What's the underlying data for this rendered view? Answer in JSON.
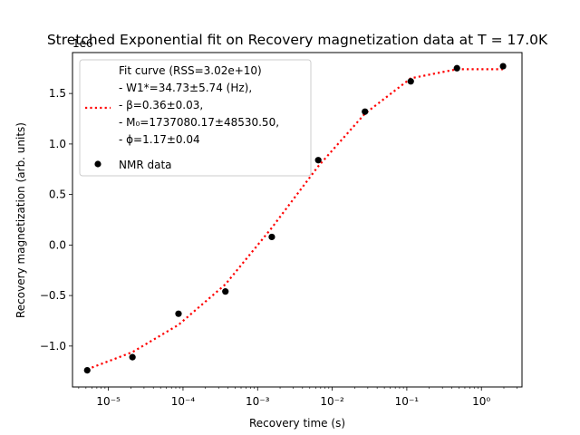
{
  "chart_data": {
    "type": "scatter",
    "title": "Stretched Exponential fit on Recovery magnetization data at T = 17.0K",
    "xlabel": "Recovery time (s)",
    "ylabel": "Recovery magnetization (arb. units)",
    "y_offset_label": "1e6",
    "x_scale": "log",
    "xlim": [
      3.3e-06,
      3.5
    ],
    "ylim": [
      -1.405,
      1.905
    ],
    "x_ticks": [
      {
        "value": 1e-05,
        "label": "10⁻⁵"
      },
      {
        "value": 0.0001,
        "label": "10⁻⁴"
      },
      {
        "value": 0.001,
        "label": "10⁻³"
      },
      {
        "value": 0.01,
        "label": "10⁻²"
      },
      {
        "value": 0.1,
        "label": "10⁻¹"
      },
      {
        "value": 1,
        "label": "10⁰"
      }
    ],
    "y_ticks": [
      {
        "value": -1.0,
        "label": "−1.0"
      },
      {
        "value": -0.5,
        "label": "−0.5"
      },
      {
        "value": 0.0,
        "label": "0.0"
      },
      {
        "value": 0.5,
        "label": "0.5"
      },
      {
        "value": 1.0,
        "label": "1.0"
      },
      {
        "value": 1.5,
        "label": "1.5"
      }
    ],
    "grid": false,
    "legend_position": "upper-left",
    "series": [
      {
        "name": "NMR data",
        "kind": "scatter",
        "color": "#000000",
        "x": [
          5.2e-06,
          2.1e-05,
          8.7e-05,
          0.00037,
          0.00155,
          0.0065,
          0.0275,
          0.113,
          0.47,
          1.95
        ],
        "y": [
          -1.24,
          -1.11,
          -0.68,
          -0.46,
          0.08,
          0.84,
          1.32,
          1.62,
          1.75,
          1.77
        ]
      },
      {
        "name_lines": [
          "Fit curve (RSS=3.02e+10)",
          "- W1*=34.73±5.74 (Hz),",
          "- β=0.36±0.03,",
          "- M₀=1737080.17±48530.50,",
          "- ϕ=1.17±0.04"
        ],
        "kind": "line",
        "style": "dotted",
        "color": "#ff0000",
        "x": [
          5.2e-06,
          2.1e-05,
          8.7e-05,
          0.00037,
          0.00155,
          0.0065,
          0.0275,
          0.113,
          0.47,
          1.95
        ],
        "y": [
          -1.23,
          -1.06,
          -0.79,
          -0.39,
          0.17,
          0.78,
          1.3,
          1.65,
          1.74,
          1.74
        ]
      }
    ]
  }
}
